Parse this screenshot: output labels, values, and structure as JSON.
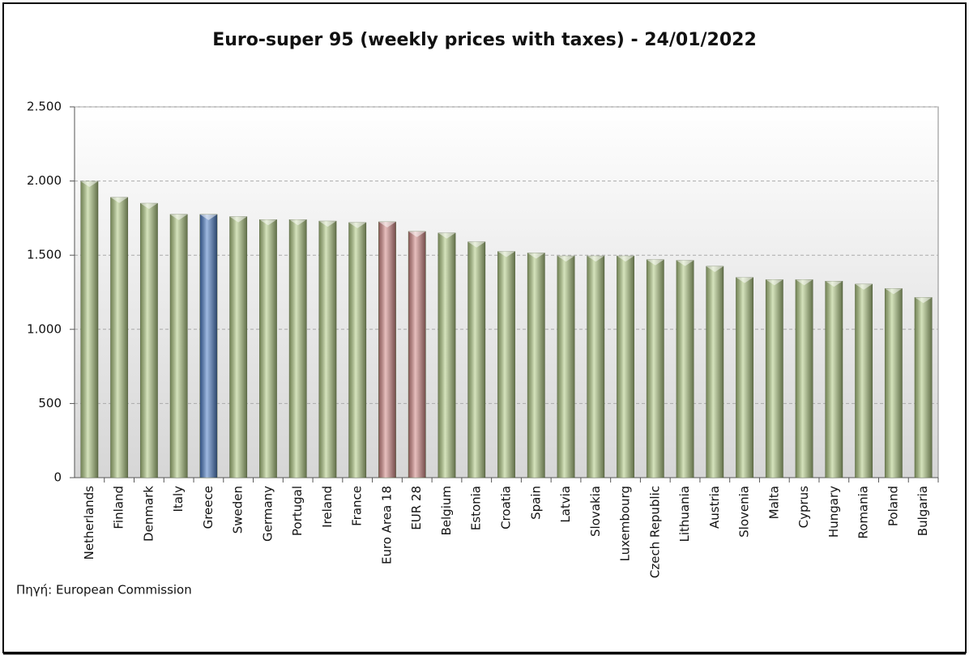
{
  "chart_data": {
    "type": "bar",
    "title": "Euro-super 95 (weekly prices with taxes) - 24/01/2022",
    "source": "Πηγή: European Commission",
    "categories": [
      "Netherlands",
      "Finland",
      "Denmark",
      "Italy",
      "Greece",
      "Sweden",
      "Germany",
      "Portugal",
      "Ireland",
      "France",
      "Euro Area 18",
      "EUR 28",
      "Belgium",
      "Estonia",
      "Croatia",
      "Spain",
      "Latvia",
      "Slovakia",
      "Luxembourg",
      "Czech Republic",
      "Lithuania",
      "Austria",
      "Slovenia",
      "Malta",
      "Cyprus",
      "Hungary",
      "Romania",
      "Poland",
      "Bulgaria"
    ],
    "values": [
      1998,
      1890,
      1850,
      1775,
      1775,
      1760,
      1740,
      1740,
      1730,
      1720,
      1725,
      1660,
      1650,
      1590,
      1525,
      1515,
      1495,
      1495,
      1495,
      1470,
      1465,
      1425,
      1350,
      1335,
      1335,
      1325,
      1305,
      1275,
      1215
    ],
    "colors": [
      "#b3cc86",
      "#b3cc86",
      "#b3cc86",
      "#b3cc86",
      "#4f7fc8",
      "#b3cc86",
      "#b3cc86",
      "#b3cc86",
      "#b3cc86",
      "#b3cc86",
      "#d48a88",
      "#d48a88",
      "#b3cc86",
      "#b3cc86",
      "#b3cc86",
      "#b3cc86",
      "#b3cc86",
      "#b3cc86",
      "#b3cc86",
      "#b3cc86",
      "#b3cc86",
      "#b3cc86",
      "#b3cc86",
      "#b3cc86",
      "#b3cc86",
      "#b3cc86",
      "#b3cc86",
      "#b3cc86",
      "#b3cc86"
    ],
    "ylim": [
      0,
      2500
    ],
    "yticks": [
      0,
      500,
      {
        "value": 1000,
        "label": "1.000"
      },
      {
        "value": 1500,
        "label": "1.500"
      },
      {
        "value": 2000,
        "label": "2.000"
      },
      {
        "value": 2500,
        "label": "2.500"
      }
    ],
    "grid": true
  }
}
